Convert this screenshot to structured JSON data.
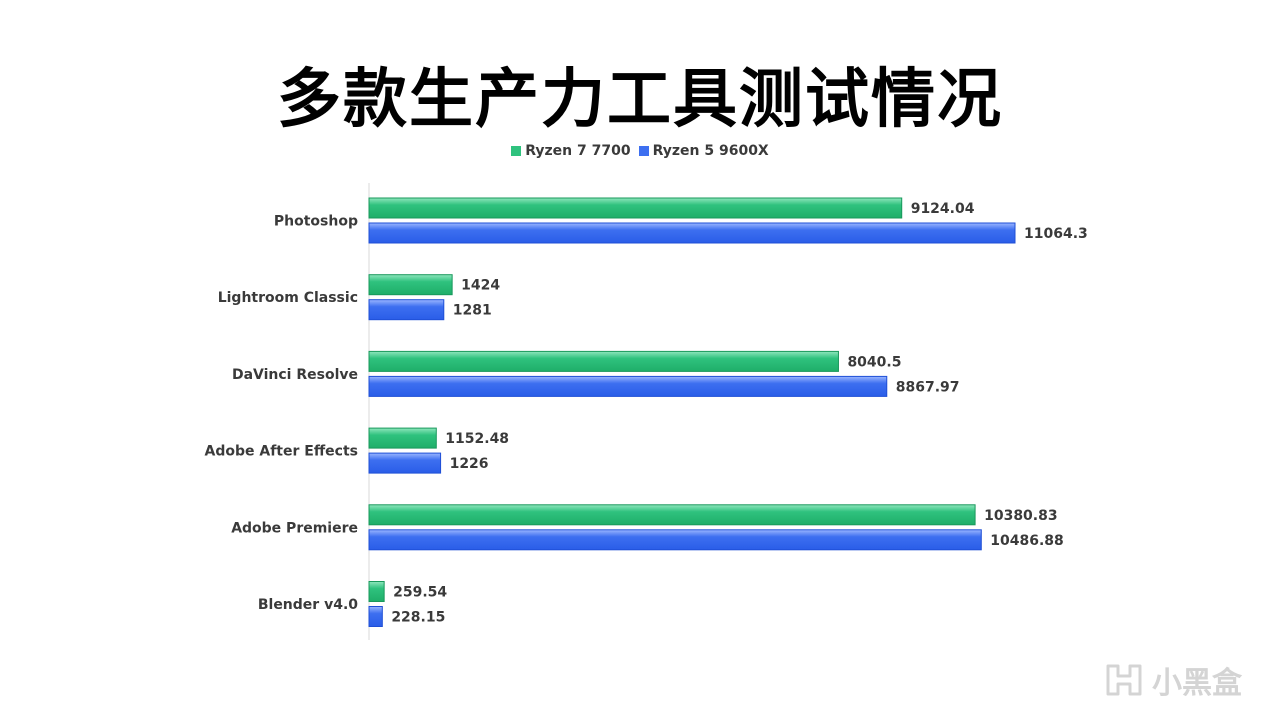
{
  "chart_data": {
    "type": "bar",
    "orientation": "horizontal",
    "title": "多款生产力工具测试情况",
    "categories": [
      "Photoshop",
      "Lightroom Classic",
      "DaVinci Resolve",
      "Adobe After Effects",
      "Adobe Premiere",
      "Blender v4.0"
    ],
    "series": [
      {
        "name": "Ryzen 7 7700",
        "color": "#2fc27e",
        "values": [
          9124.04,
          1424,
          8040.5,
          1152.48,
          10380.83,
          259.54
        ],
        "labels": [
          "9124.04",
          "1424",
          "8040.5",
          "1152.48",
          "10380.83",
          "259.54"
        ]
      },
      {
        "name": "Ryzen 5 9600X",
        "color": "#3d6ff0",
        "values": [
          11064.3,
          1281,
          8867.97,
          1226,
          10486.88,
          228.15
        ],
        "labels": [
          "11064.3",
          "1281",
          "8867.97",
          "1226",
          "10486.88",
          "228.15"
        ]
      }
    ],
    "xlim": [
      0,
      13500
    ],
    "grid": false,
    "legend_position": "top-center"
  },
  "watermark": {
    "text": "小黑盒",
    "icon": "heybox-logo-icon"
  }
}
